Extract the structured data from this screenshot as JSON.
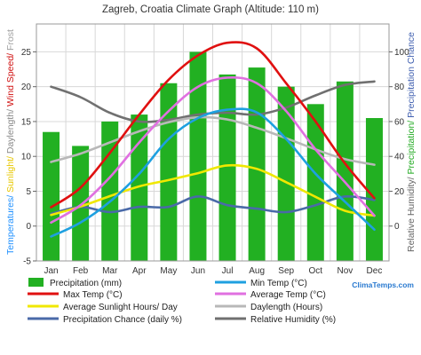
{
  "chart_data": {
    "type": "bar",
    "title": "Zagreb, Croatia Climate Graph (Altitude: 110 m)",
    "categories": [
      "Jan",
      "Feb",
      "Mar",
      "Apr",
      "May",
      "Jun",
      "Jul",
      "Aug",
      "Sep",
      "Oct",
      "Nov",
      "Dec"
    ],
    "left_axis": {
      "ylim": [
        -5,
        29
      ],
      "ticks": [
        -5,
        0,
        5,
        10,
        15,
        20,
        25
      ],
      "label_parts": [
        {
          "text": "Temperatures/ ",
          "color": "#1e90ff"
        },
        {
          "text": "Sunlight/ ",
          "color": "#e8c800"
        },
        {
          "text": "Daylength/ ",
          "color": "#888888"
        },
        {
          "text": "Wind Speed/ ",
          "color": "#d01010"
        },
        {
          "text": "Frost",
          "color": "#a0a0a0"
        }
      ]
    },
    "right_axis": {
      "ylim": [
        -20,
        116
      ],
      "ticks": [
        0,
        20,
        40,
        60,
        80,
        100
      ],
      "label_parts": [
        {
          "text": "Relative Humidity/ ",
          "color": "#666666"
        },
        {
          "text": "Precipitation/ ",
          "color": "#22aa22"
        },
        {
          "text": "Precipitation Chance",
          "color": "#4060b0"
        }
      ]
    },
    "series": [
      {
        "name": "Precipitation (mm)",
        "kind": "bar",
        "axis": "right",
        "color": "#22b022",
        "values": [
          54,
          46,
          60,
          64,
          82,
          100,
          87,
          91,
          80,
          70,
          83,
          62
        ]
      },
      {
        "name": "Min Temp (°C)",
        "kind": "line",
        "axis": "left",
        "color": "#1ea0e0",
        "values": [
          -1.5,
          0.5,
          3.5,
          7.5,
          12.5,
          15.5,
          16.7,
          16.3,
          12.5,
          7.5,
          3.5,
          -0.5
        ]
      },
      {
        "name": "Max Temp (°C)",
        "kind": "line",
        "axis": "left",
        "color": "#e01010",
        "values": [
          2.7,
          5.5,
          10.5,
          16,
          21,
          24.5,
          26.3,
          25.5,
          20.5,
          15,
          9,
          4
        ]
      },
      {
        "name": "Average Temp (°C)",
        "kind": "line",
        "axis": "left",
        "color": "#e070e0",
        "values": [
          0.5,
          3,
          7,
          12,
          16.5,
          20,
          21.3,
          20.5,
          16.5,
          11,
          6.3,
          1.5
        ]
      },
      {
        "name": "Average Sunlight Hours/ Day",
        "kind": "line",
        "axis": "left",
        "color": "#f0e800",
        "values": [
          1.6,
          2.8,
          4.3,
          5.7,
          6.6,
          7.6,
          8.7,
          8.2,
          6.3,
          4.2,
          2.2,
          1.5
        ]
      },
      {
        "name": "Daylength (Hours)",
        "kind": "line",
        "axis": "left",
        "color": "#b8b8b8",
        "values": [
          9.2,
          10.4,
          12,
          13.6,
          14.9,
          15.6,
          15.3,
          14.1,
          12.6,
          11,
          9.6,
          8.8
        ]
      },
      {
        "name": "Precipitation Chance (daily %)",
        "kind": "line",
        "axis": "right",
        "color": "#4a6aa8",
        "values": [
          7,
          11,
          8,
          11,
          11,
          17,
          12,
          10,
          8,
          12,
          17,
          15
        ]
      },
      {
        "name": "Relative Humidity (%)",
        "kind": "line",
        "axis": "right",
        "color": "#707070",
        "values": [
          80,
          74,
          65,
          60,
          61,
          64,
          65,
          64,
          68,
          75,
          81,
          83
        ]
      }
    ],
    "grid": true,
    "legend_position": "bottom"
  },
  "branding": {
    "text": "ClimaTemps.com"
  }
}
